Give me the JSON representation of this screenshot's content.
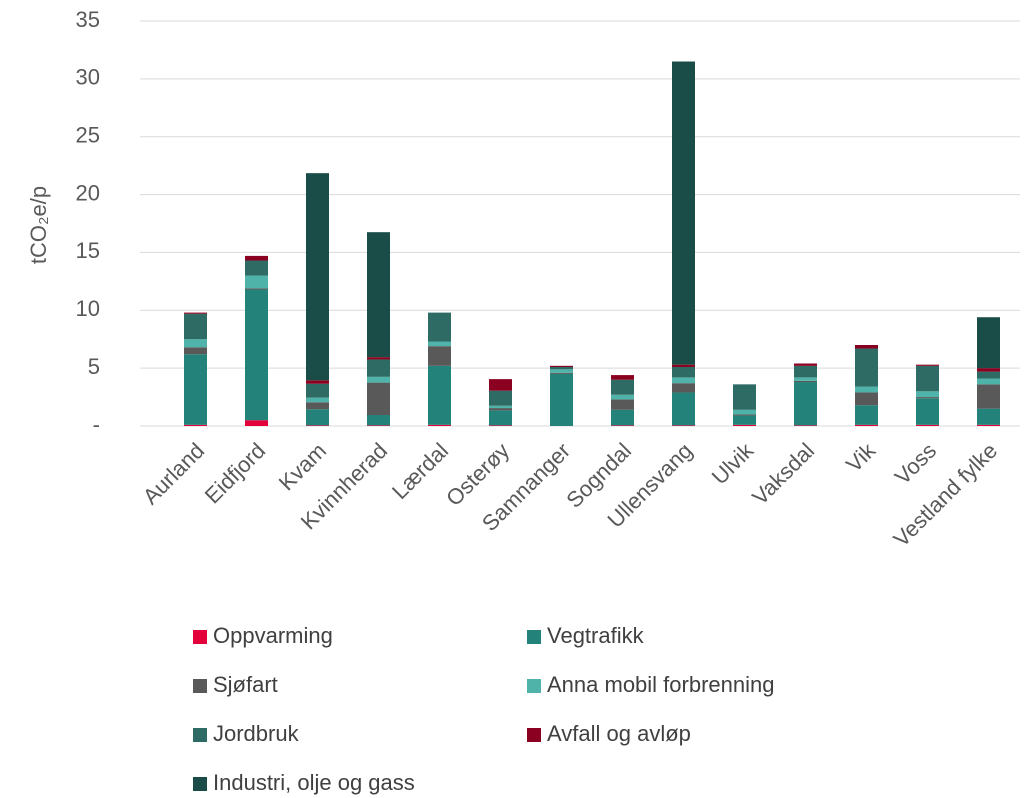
{
  "chart_data": {
    "type": "stacked_bar",
    "y_label": "tCO₂e/p",
    "categories": [
      "Aurland",
      "Eidfjord",
      "Kvam",
      "Kvinnherad",
      "Lærdal",
      "Osterøy",
      "Samnanger",
      "Sogndal",
      "Ullensvang",
      "Ulvik",
      "Vaksdal",
      "Vik",
      "Voss",
      "Vestland fylke"
    ],
    "series": [
      {
        "name": "Oppvarming",
        "color": "#e4003a",
        "values": [
          0.1,
          0.5,
          0.05,
          0.05,
          0.1,
          0.05,
          0,
          0.05,
          0.05,
          0.1,
          0.05,
          0.1,
          0.1,
          0.1
        ]
      },
      {
        "name": "Vegtrafikk",
        "color": "#23837a",
        "values": [
          6.1,
          11.3,
          1.4,
          0.9,
          5.1,
          1.3,
          4.5,
          1.35,
          2.85,
          0.8,
          3.75,
          1.7,
          2.3,
          1.4
        ]
      },
      {
        "name": "Sjøfart",
        "color": "#595959",
        "values": [
          0.6,
          0.1,
          0.6,
          2.8,
          1.7,
          0.2,
          0.1,
          0.9,
          0.8,
          0.1,
          0.1,
          1.1,
          0.1,
          2.1
        ]
      },
      {
        "name": "Anna mobil forbrenning",
        "color": "#4fb3aa",
        "values": [
          0.7,
          1.1,
          0.4,
          0.5,
          0.4,
          0.2,
          0.3,
          0.4,
          0.5,
          0.4,
          0.3,
          0.5,
          0.5,
          0.5
        ]
      },
      {
        "name": "Jordbruk",
        "color": "#2e6b65",
        "values": [
          2.2,
          1.3,
          1.2,
          1.5,
          2.5,
          1.3,
          0.2,
          1.3,
          0.9,
          2.2,
          1.0,
          3.3,
          2.2,
          0.6
        ]
      },
      {
        "name": "Avfall og avløp",
        "color": "#8b0020",
        "values": [
          0.1,
          0.4,
          0.3,
          0.2,
          0,
          1.0,
          0.1,
          0.4,
          0.2,
          0,
          0.2,
          0.3,
          0.1,
          0.3
        ]
      },
      {
        "name": "Industri, olje og gass",
        "color": "#1a4d47",
        "values": [
          0,
          0,
          17.9,
          10.8,
          0,
          0,
          0,
          0,
          26.2,
          0,
          0,
          0,
          0,
          4.4
        ]
      }
    ],
    "ylim": [
      0,
      35
    ],
    "yticks": [
      {
        "value": 0,
        "label": "-"
      },
      5,
      10,
      15,
      20,
      25,
      30,
      35
    ],
    "grid": true
  }
}
